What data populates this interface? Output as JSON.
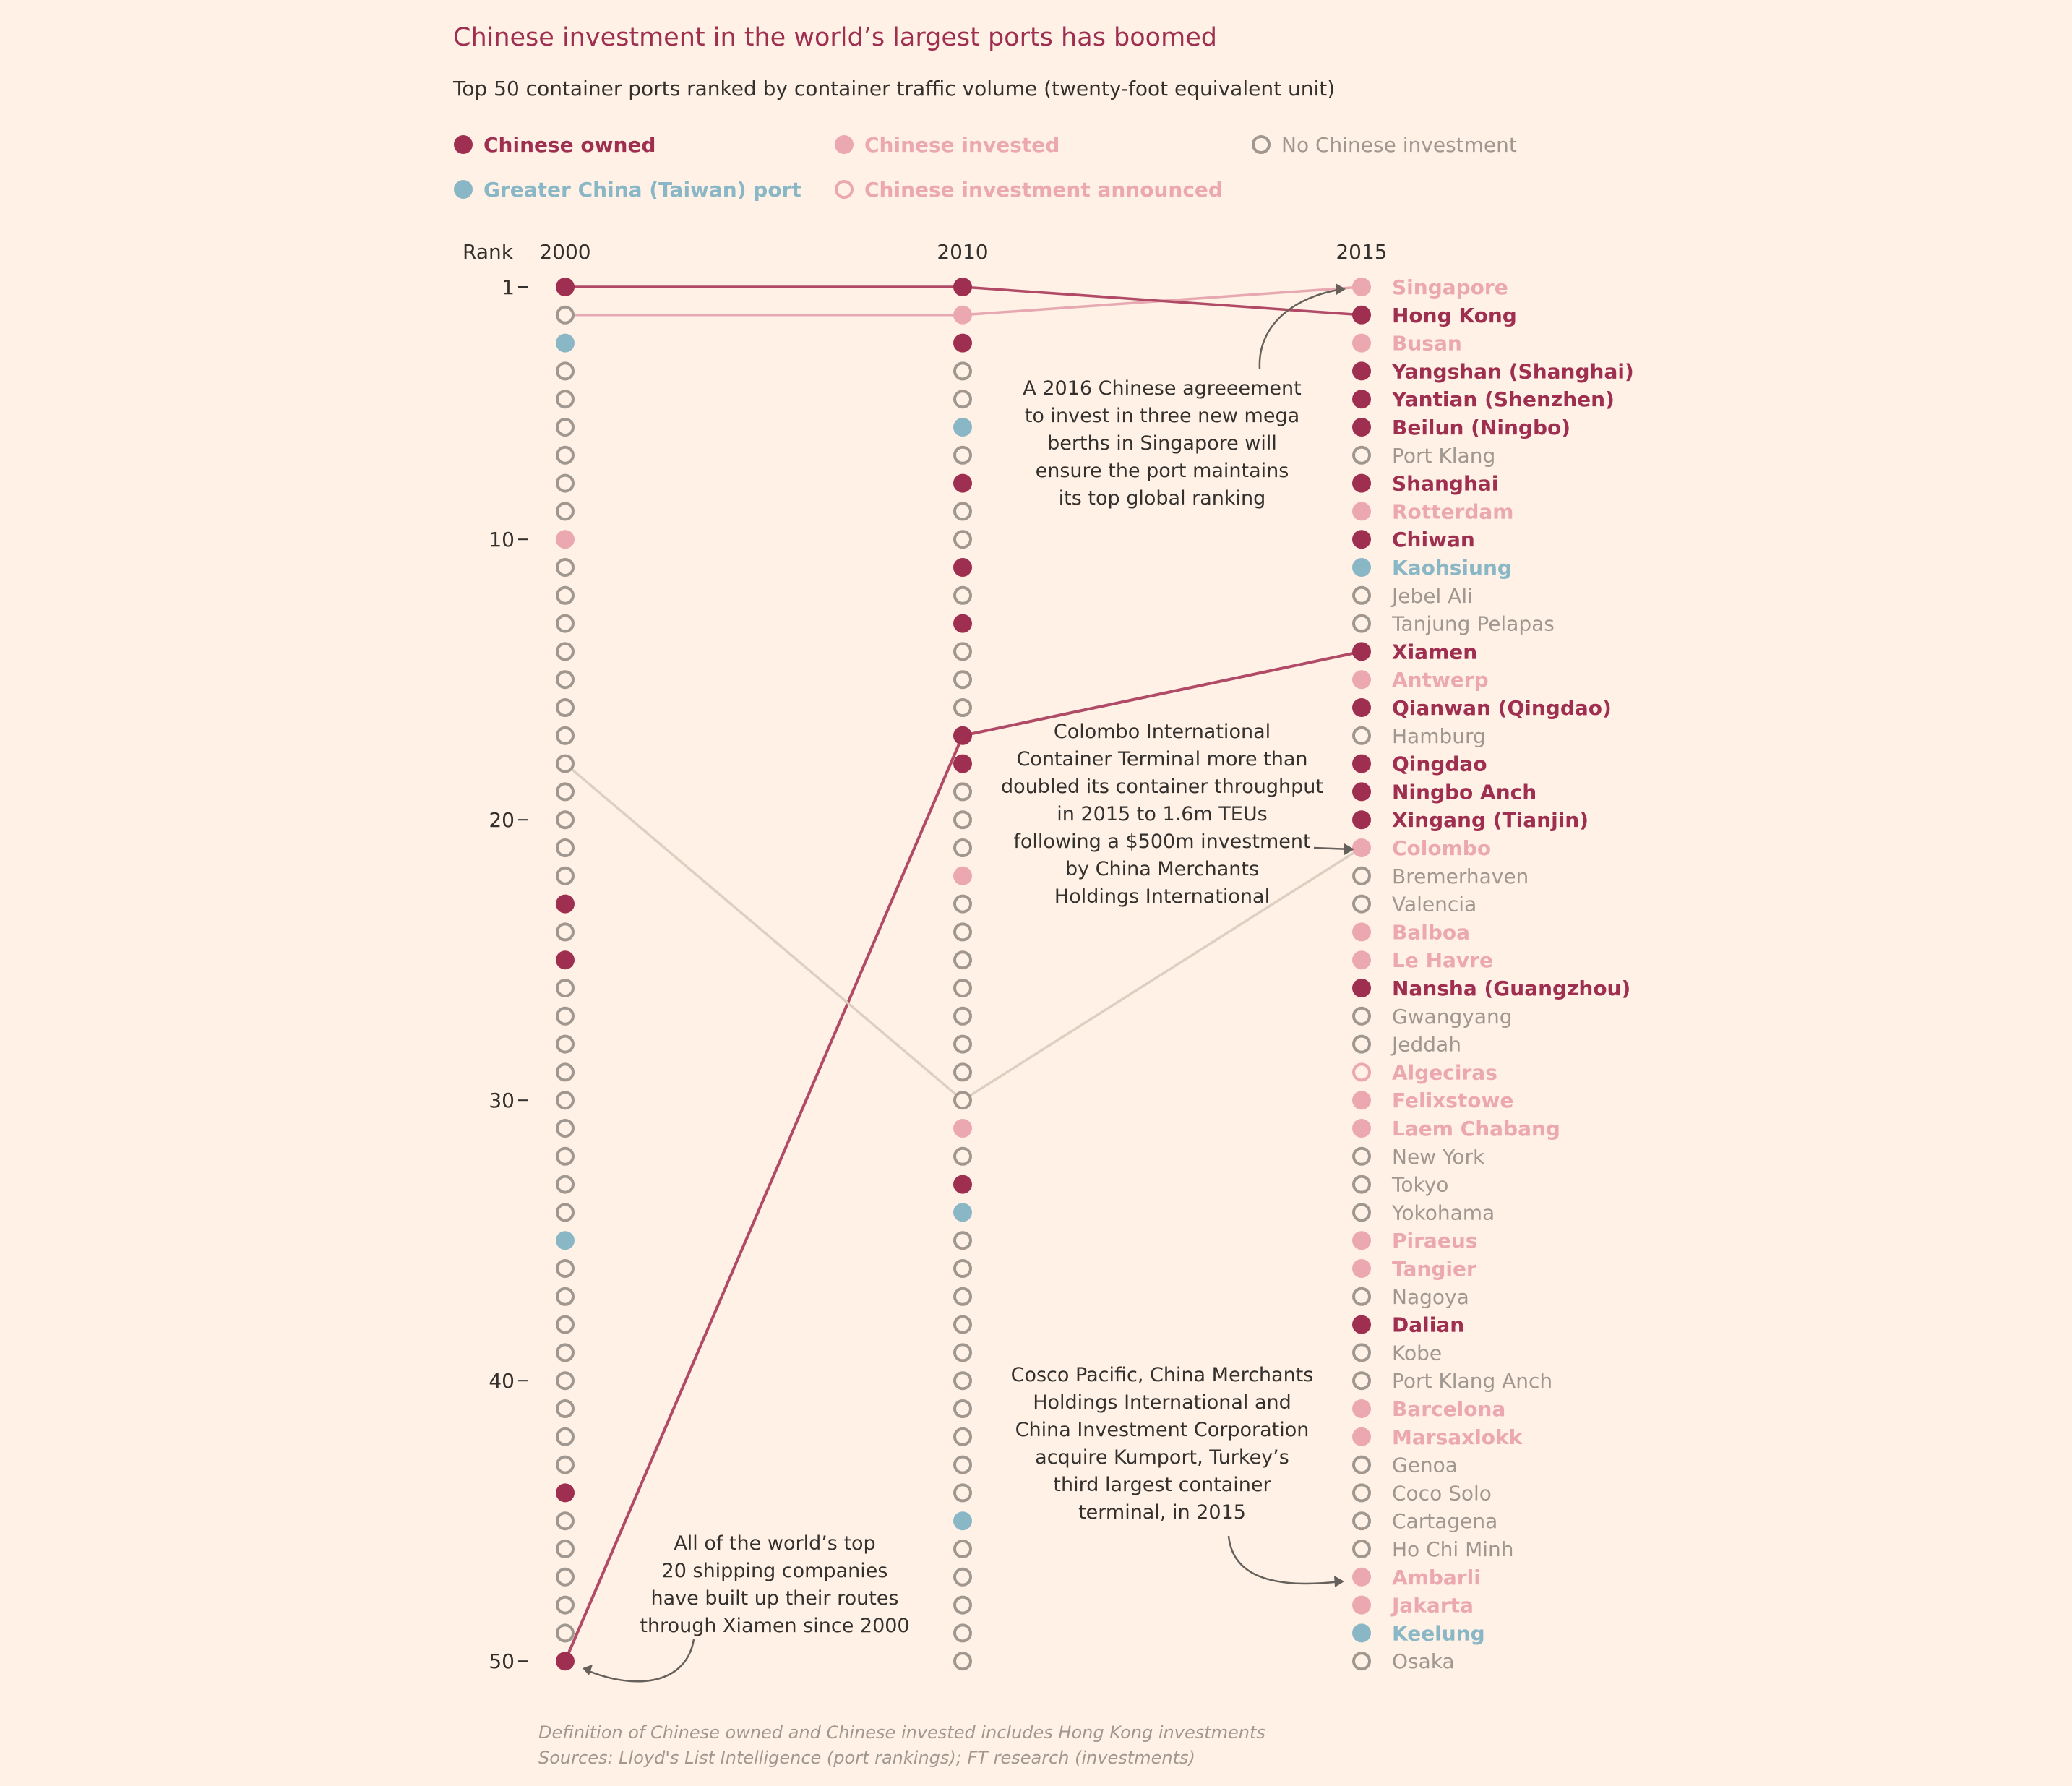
{
  "title": "Chinese investment in the world’s largest ports has boomed",
  "subtitle": "Top 50 container ports ranked by container traffic volume (twenty-foot equivalent unit)",
  "legend": [
    {
      "key": "owned",
      "label": "Chinese owned"
    },
    {
      "key": "invested",
      "label": "Chinese invested"
    },
    {
      "key": "none",
      "label": "No Chinese investment"
    },
    {
      "key": "taiwan",
      "label": "Greater China (Taiwan) port"
    },
    {
      "key": "announced",
      "label": "Chinese investment announced"
    }
  ],
  "colors": {
    "owned": "#9e2f50",
    "invested": "#eba8b0",
    "none": "#a09890",
    "taiwan": "#8ab7c6",
    "announced": "#eba8b0",
    "background": "#fff1e5",
    "text": "#33302e"
  },
  "annotations": [
    {
      "key": "singapore",
      "lines": [
        "A 2016 Chinese agreeement",
        "to invest in three new mega",
        "berths in Singapore will",
        "ensure the port maintains",
        "its top global ranking"
      ]
    },
    {
      "key": "colombo",
      "lines": [
        "Colombo International",
        "Container Terminal more than",
        "doubled its container throughput",
        "in 2015 to 1.6m TEUs",
        "following a $500m investment",
        "by China Merchants",
        "Holdings International"
      ]
    },
    {
      "key": "kumport",
      "lines": [
        "Cosco Pacific, China Merchants",
        "Holdings International and",
        "China Investment Corporation",
        "acquire Kumport, Turkey’s",
        "third largest container",
        "terminal, in 2015"
      ]
    },
    {
      "key": "xiamen",
      "lines": [
        "All of the world’s top",
        "20 shipping companies",
        "have built up their routes",
        "through Xiamen since 2000"
      ]
    }
  ],
  "footnotes": [
    "Definition of Chinese owned and Chinese invested includes Hong Kong investments",
    "Sources: Lloyd's List Intelligence (port rankings); FT research (investments)"
  ],
  "chart_data": {
    "type": "scatter",
    "title": "Chinese investment in the world’s largest ports has boomed",
    "subtitle": "Top 50 container ports ranked by container traffic volume (twenty-foot equivalent unit)",
    "ylabel": "Rank",
    "y_ticks": [
      1,
      10,
      20,
      30,
      40,
      50
    ],
    "ylim": [
      1,
      50
    ],
    "columns": [
      {
        "year": "2000",
        "status": [
          "owned",
          "none",
          "taiwan",
          "none",
          "none",
          "none",
          "none",
          "none",
          "none",
          "invested",
          "none",
          "none",
          "none",
          "none",
          "none",
          "none",
          "none",
          "none",
          "none",
          "none",
          "none",
          "none",
          "owned",
          "none",
          "owned",
          "none",
          "none",
          "none",
          "none",
          "none",
          "none",
          "none",
          "none",
          "none",
          "taiwan",
          "none",
          "none",
          "none",
          "none",
          "none",
          "none",
          "none",
          "none",
          "owned",
          "none",
          "none",
          "none",
          "none",
          "none",
          "owned"
        ]
      },
      {
        "year": "2010",
        "status": [
          "owned",
          "invested",
          "owned",
          "none",
          "none",
          "taiwan",
          "none",
          "owned",
          "none",
          "none",
          "owned",
          "none",
          "owned",
          "none",
          "none",
          "none",
          "owned",
          "owned",
          "none",
          "none",
          "none",
          "invested",
          "none",
          "none",
          "none",
          "none",
          "none",
          "none",
          "none",
          "none",
          "invested",
          "none",
          "owned",
          "taiwan",
          "none",
          "none",
          "none",
          "none",
          "none",
          "none",
          "none",
          "none",
          "none",
          "none",
          "taiwan",
          "none",
          "none",
          "none",
          "none",
          "none"
        ]
      },
      {
        "year": "2015",
        "ports": [
          {
            "rank": 1,
            "name": "Singapore",
            "status": "invested"
          },
          {
            "rank": 2,
            "name": "Hong Kong",
            "status": "owned"
          },
          {
            "rank": 3,
            "name": "Busan",
            "status": "invested"
          },
          {
            "rank": 4,
            "name": "Yangshan (Shanghai)",
            "status": "owned"
          },
          {
            "rank": 5,
            "name": "Yantian (Shenzhen)",
            "status": "owned"
          },
          {
            "rank": 6,
            "name": "Beilun (Ningbo)",
            "status": "owned"
          },
          {
            "rank": 7,
            "name": "Port Klang",
            "status": "none"
          },
          {
            "rank": 8,
            "name": "Shanghai",
            "status": "owned"
          },
          {
            "rank": 9,
            "name": "Rotterdam",
            "status": "invested"
          },
          {
            "rank": 10,
            "name": "Chiwan",
            "status": "owned"
          },
          {
            "rank": 11,
            "name": "Kaohsiung",
            "status": "taiwan"
          },
          {
            "rank": 12,
            "name": "Jebel Ali",
            "status": "none"
          },
          {
            "rank": 13,
            "name": "Tanjung Pelapas",
            "status": "none"
          },
          {
            "rank": 14,
            "name": "Xiamen",
            "status": "owned"
          },
          {
            "rank": 15,
            "name": "Antwerp",
            "status": "invested"
          },
          {
            "rank": 16,
            "name": "Qianwan (Qingdao)",
            "status": "owned"
          },
          {
            "rank": 17,
            "name": "Hamburg",
            "status": "none"
          },
          {
            "rank": 18,
            "name": "Qingdao",
            "status": "owned"
          },
          {
            "rank": 19,
            "name": "Ningbo Anch",
            "status": "owned"
          },
          {
            "rank": 20,
            "name": "Xingang (Tianjin)",
            "status": "owned"
          },
          {
            "rank": 21,
            "name": "Colombo",
            "status": "invested"
          },
          {
            "rank": 22,
            "name": "Bremerhaven",
            "status": "none"
          },
          {
            "rank": 23,
            "name": "Valencia",
            "status": "none"
          },
          {
            "rank": 24,
            "name": "Balboa",
            "status": "invested"
          },
          {
            "rank": 25,
            "name": "Le Havre",
            "status": "invested"
          },
          {
            "rank": 26,
            "name": "Nansha (Guangzhou)",
            "status": "owned"
          },
          {
            "rank": 27,
            "name": "Gwangyang",
            "status": "none"
          },
          {
            "rank": 28,
            "name": "Jeddah",
            "status": "none"
          },
          {
            "rank": 29,
            "name": "Algeciras",
            "status": "announced"
          },
          {
            "rank": 30,
            "name": "Felixstowe",
            "status": "invested"
          },
          {
            "rank": 31,
            "name": "Laem Chabang",
            "status": "invested"
          },
          {
            "rank": 32,
            "name": "New York",
            "status": "none"
          },
          {
            "rank": 33,
            "name": "Tokyo",
            "status": "none"
          },
          {
            "rank": 34,
            "name": "Yokohama",
            "status": "none"
          },
          {
            "rank": 35,
            "name": "Piraeus",
            "status": "invested"
          },
          {
            "rank": 36,
            "name": "Tangier",
            "status": "invested"
          },
          {
            "rank": 37,
            "name": "Nagoya",
            "status": "none"
          },
          {
            "rank": 38,
            "name": "Dalian",
            "status": "owned"
          },
          {
            "rank": 39,
            "name": "Kobe",
            "status": "none"
          },
          {
            "rank": 40,
            "name": "Port Klang Anch",
            "status": "none"
          },
          {
            "rank": 41,
            "name": "Barcelona",
            "status": "invested"
          },
          {
            "rank": 42,
            "name": "Marsaxlokk",
            "status": "invested"
          },
          {
            "rank": 43,
            "name": "Genoa",
            "status": "none"
          },
          {
            "rank": 44,
            "name": "Coco Solo",
            "status": "none"
          },
          {
            "rank": 45,
            "name": "Cartagena",
            "status": "none"
          },
          {
            "rank": 46,
            "name": "Ho Chi Minh",
            "status": "none"
          },
          {
            "rank": 47,
            "name": "Ambarli",
            "status": "invested"
          },
          {
            "rank": 48,
            "name": "Jakarta",
            "status": "invested"
          },
          {
            "rank": 49,
            "name": "Keelung",
            "status": "taiwan"
          },
          {
            "rank": 50,
            "name": "Osaka",
            "status": "none"
          }
        ]
      }
    ],
    "trajectories": [
      {
        "port": "Singapore",
        "ranks": [
          2,
          2,
          1
        ],
        "status": "invested"
      },
      {
        "port": "Hong Kong",
        "ranks": [
          1,
          1,
          2
        ],
        "status": "owned"
      },
      {
        "port": "Xiamen",
        "ranks": [
          50,
          17,
          14
        ],
        "status": "owned"
      },
      {
        "port": "Colombo",
        "ranks": [
          18,
          30,
          21
        ],
        "status": "none"
      }
    ]
  }
}
